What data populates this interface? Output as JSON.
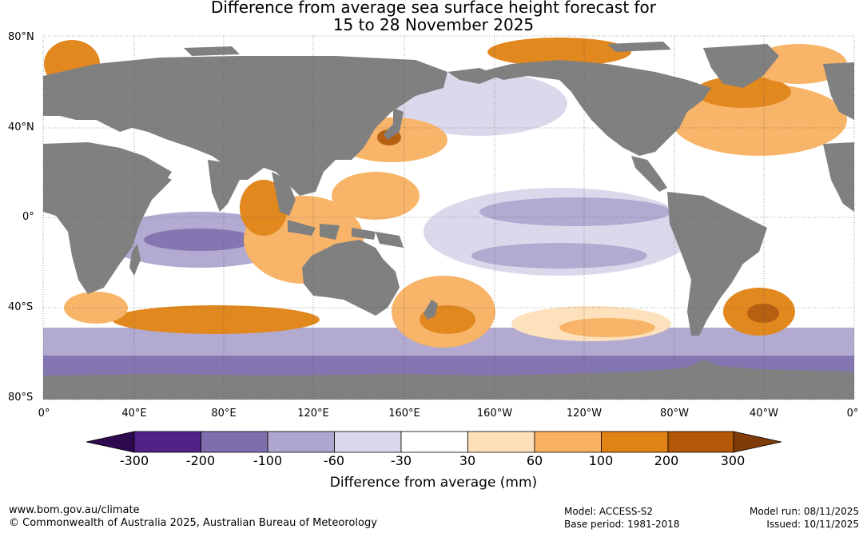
{
  "title": {
    "line1": "Difference from average sea surface height forecast for",
    "line2": "15 to 28 November 2025"
  },
  "map": {
    "lat_labels": [
      "80°N",
      "40°N",
      "0°",
      "40°S",
      "80°S"
    ],
    "lon_labels": [
      "0°",
      "40°E",
      "80°E",
      "120°E",
      "160°E",
      "160°W",
      "120°W",
      "80°W",
      "40°W",
      "0°"
    ],
    "colors": {
      "land": "#808080",
      "ocean": "#ffffff",
      "gridline": "#555555"
    }
  },
  "colorbar": {
    "label": "Difference from average (mm)",
    "ticks": [
      "-300",
      "-200",
      "-100",
      "-60",
      "-30",
      "30",
      "60",
      "100",
      "200",
      "300"
    ],
    "colors": [
      "#2d0a4e",
      "#522188",
      "#7e6fac",
      "#aea6cf",
      "#d9d8eb",
      "#ffffff",
      "#fde0b9",
      "#f8b160",
      "#e08214",
      "#b35806",
      "#7f3b08"
    ]
  },
  "footer": {
    "url": "www.bom.gov.au/climate",
    "copyright": "© Commonwealth of Australia 2025, Australian Bureau of Meteorology",
    "model": "Model: ACCESS-S2",
    "base_period": "Base period: 1981-2018",
    "model_run": "Model run: 08/11/2025",
    "issued": "Issued: 10/11/2025"
  }
}
